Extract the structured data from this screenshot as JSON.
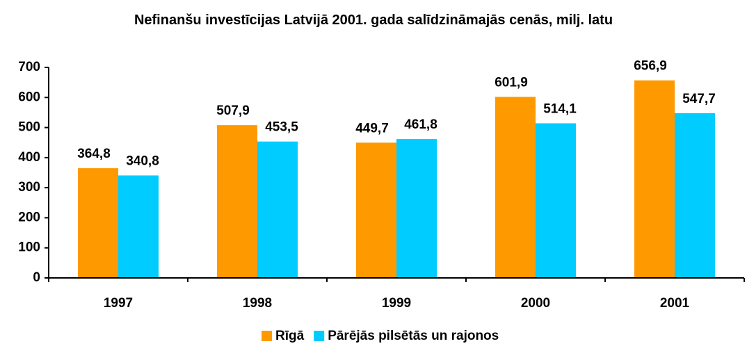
{
  "chart_data": {
    "type": "bar",
    "title": "Nefinanšu investīcijas Latvijā 2001. gada salīdzināmajās cenās, milj. latu",
    "categories": [
      "1997",
      "1998",
      "1999",
      "2000",
      "2001"
    ],
    "series": [
      {
        "name": "Rīgā",
        "color": "#ff9900",
        "values": [
          364.8,
          507.9,
          449.7,
          601.9,
          656.9
        ],
        "value_labels": [
          "364,8",
          "507,9",
          "449,7",
          "601,9",
          "656,9"
        ]
      },
      {
        "name": "Pārējās pilsētās un rajonos",
        "color": "#00ccff",
        "values": [
          340.8,
          453.5,
          461.8,
          514.1,
          547.7
        ],
        "value_labels": [
          "340,8",
          "453,5",
          "461,8",
          "514,1",
          "547,7"
        ]
      }
    ],
    "ylim": [
      0,
      700
    ],
    "yticks": [
      0,
      100,
      200,
      300,
      400,
      500,
      600,
      700
    ],
    "grid": false,
    "legend": "bottom"
  }
}
